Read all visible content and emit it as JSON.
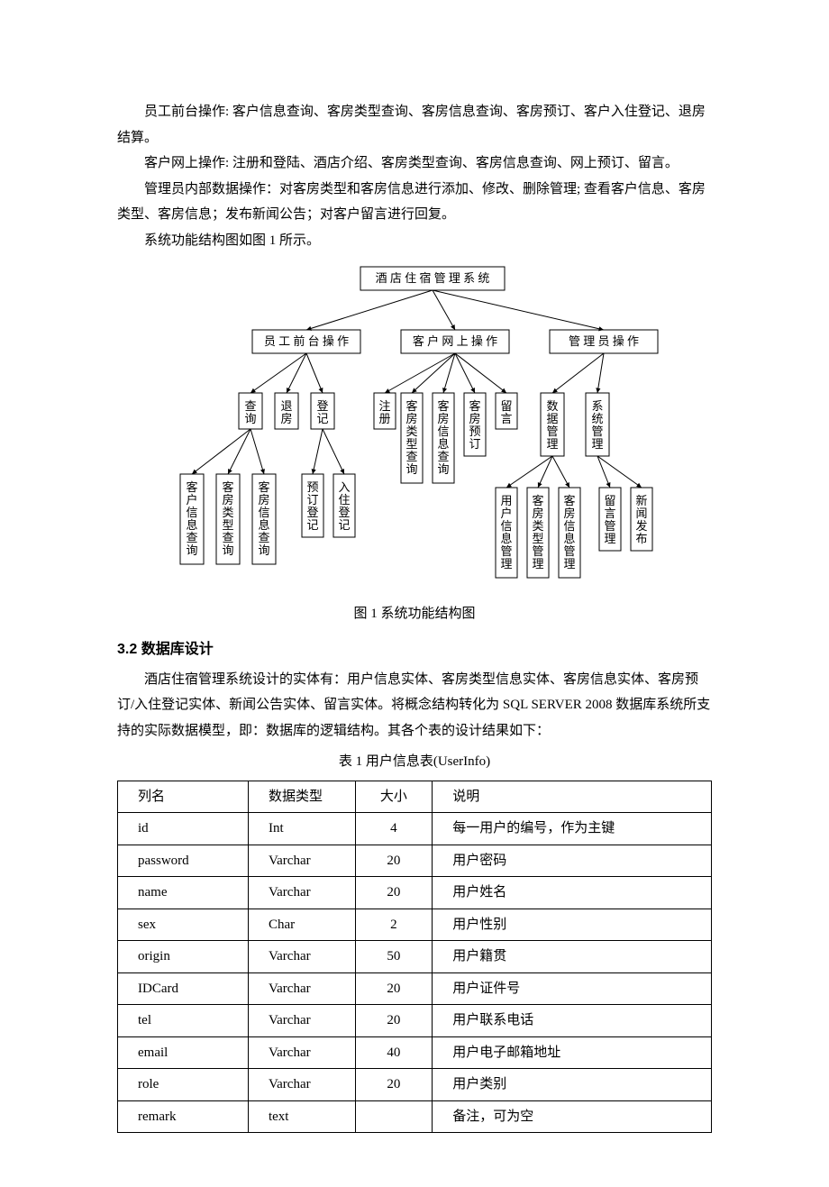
{
  "paragraphs": {
    "p1": "员工前台操作: 客户信息查询、客房类型查询、客房信息查询、客房预订、客户入住登记、退房结算。",
    "p2": "客户网上操作: 注册和登陆、酒店介绍、客房类型查询、客房信息查询、网上预订、留言。",
    "p3": "管理员内部数据操作：对客房类型和客房信息进行添加、修改、删除管理; 查看客户信息、客房类型、客房信息；发布新闻公告；对客户留言进行回复。",
    "p4": "系统功能结构图如图 1 所示。",
    "p5": "酒店住宿管理系统设计的实体有：用户信息实体、客房类型信息实体、客房信息实体、客房预订/入住登记实体、新闻公告实体、留言实体。将概念结构转化为 SQL SERVER 2008 数据库系统所支持的实际数据模型，即：数据库的逻辑结构。其各个表的设计结果如下："
  },
  "section_heading": "3.2  数据库设计",
  "fig_caption": "图 1  系统功能结构图",
  "tbl_caption": "表 1  用户信息表(UserInfo)",
  "diagram": {
    "root": "酒 店 住 宿 管 理 系 统",
    "level2": [
      "员 工 前 台 操 作",
      "客 户 网 上 操 作",
      "管 理 员 操 作"
    ],
    "emp_children": [
      "查询",
      "退房",
      "登记"
    ],
    "cust_children": [
      "注册",
      "客房类型查询",
      "客房信息查询",
      "客房预订",
      "留言"
    ],
    "admin_children": [
      "数据管理",
      "系统管理"
    ],
    "query_children": [
      "客户信息查询",
      "客房类型查询",
      "客房信息查询"
    ],
    "checkin_children": [
      "预订登记",
      "入住登记"
    ],
    "datamgr_children": [
      "用户信息管理",
      "客房类型管理",
      "客房信息管理"
    ],
    "sysmgr_children": [
      "留言管理",
      "新闻发布"
    ],
    "stroke": "#000000",
    "fill": "#ffffff"
  },
  "table": {
    "headers": [
      "列名",
      "数据类型",
      "大小",
      "说明"
    ],
    "rows": [
      [
        "id",
        "Int",
        "4",
        "每一用户的编号，作为主键"
      ],
      [
        "password",
        "Varchar",
        "20",
        "用户密码"
      ],
      [
        "name",
        "Varchar",
        "20",
        "用户姓名"
      ],
      [
        "sex",
        "Char",
        "2",
        "用户性别"
      ],
      [
        "origin",
        "Varchar",
        "50",
        "用户籍贯"
      ],
      [
        "IDCard",
        "Varchar",
        "20",
        "用户证件号"
      ],
      [
        "tel",
        "Varchar",
        "20",
        "用户联系电话"
      ],
      [
        "email",
        "Varchar",
        "40",
        "用户电子邮箱地址"
      ],
      [
        "role",
        "Varchar",
        "20",
        "用户类别"
      ],
      [
        "remark",
        "text",
        "",
        "备注，可为空"
      ]
    ],
    "col_widths": [
      "22%",
      "18%",
      "13%",
      "47%"
    ]
  }
}
